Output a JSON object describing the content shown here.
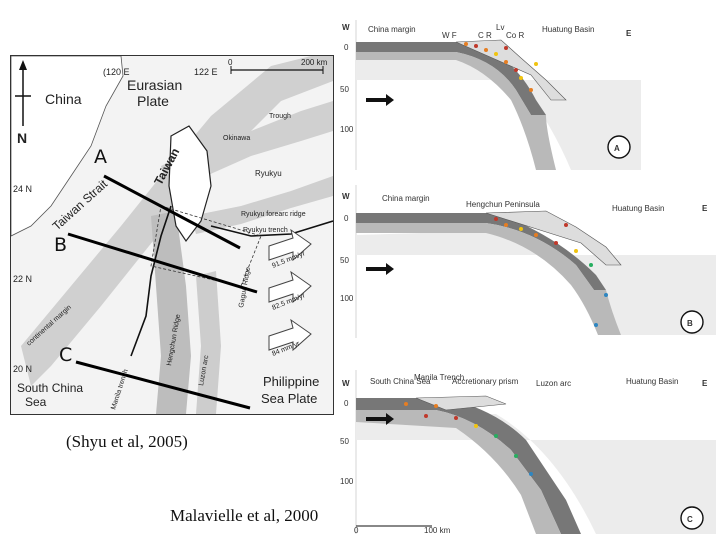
{
  "map": {
    "latitudes": [
      "24 N",
      "22 N",
      "20 N"
    ],
    "longitudes": [
      "(120 E",
      "122 E"
    ],
    "scale_start": "0",
    "scale_end": "200 km",
    "north_label": "N",
    "region_labels": {
      "china": "China",
      "eurasian": "Eurasian",
      "eurasian_plate": "Plate",
      "taiwan": "Taiwan",
      "taiwan_strait": "Taiwan Strait",
      "south_china_sea_1": "South China",
      "south_china_sea_2": "Sea",
      "philippine_1": "Philippine",
      "philippine_2": "Sea Plate",
      "ryukyu": "Ryukyu",
      "ryukyu_forearc": "Ryukyu forearc ridge",
      "ryukyu_trench": "Ryukyu trench",
      "okinawa": "Okinawa",
      "trough": "Trough",
      "gagua_ridge": "Gagua Ridge",
      "hengchun_ridge": "Hengchun Ridge",
      "manila_trench": "Manila trench",
      "luzon_arc": "Luzon arc",
      "continental_margin": "continental margin",
      "velocity_1": "91.5 mm/yr",
      "velocity_2": "82.5 mm/yr",
      "velocity_3": "84 mm/yr"
    },
    "profile_labels": [
      "A",
      "B",
      "C"
    ]
  },
  "captions": {
    "shyu": "(Shyu et al, 2005)",
    "malavielle": "Malavielle et al, 2000"
  },
  "sections": [
    {
      "id": "A",
      "top_left": "W",
      "top_right": "E",
      "labels": [
        "China margin",
        "W F",
        "C R",
        "Lv",
        "Co R",
        "Huatung Basin"
      ],
      "depth_ticks": [
        "0",
        "50",
        "100"
      ]
    },
    {
      "id": "B",
      "top_left": "W",
      "top_right": "E",
      "labels": [
        "China margin",
        "Hengchun Peninsula",
        "Huatung Basin"
      ],
      "depth_ticks": [
        "0",
        "50",
        "100"
      ]
    },
    {
      "id": "C",
      "top_left": "W",
      "top_right": "E",
      "labels": [
        "South China Sea",
        "Manila Trench",
        "Accretionary prism",
        "Luzon arc",
        "Huatung Basin"
      ],
      "depth_ticks": [
        "0",
        "50",
        "100"
      ],
      "scale_start": "0",
      "scale_end": "100 km"
    }
  ]
}
